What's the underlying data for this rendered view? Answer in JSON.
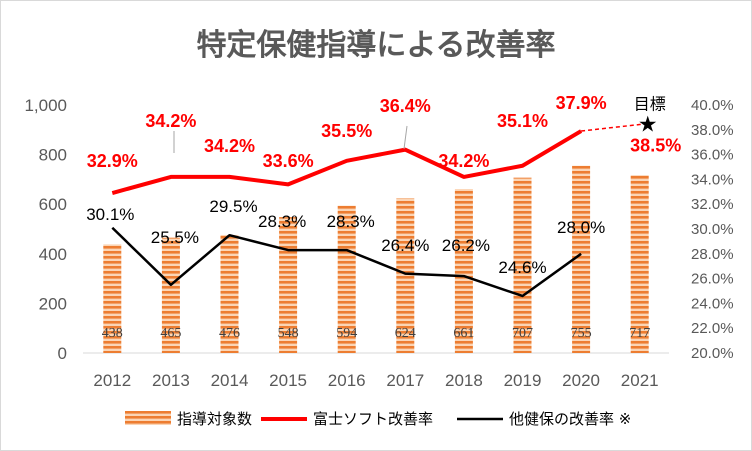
{
  "chart_data": {
    "type": "bar+line",
    "title": "特定保健指導による改善率",
    "categories": [
      "2012",
      "2013",
      "2014",
      "2015",
      "2016",
      "2017",
      "2018",
      "2019",
      "2020",
      "2021"
    ],
    "left_axis": {
      "ylim": [
        0,
        1000
      ],
      "ticks": [
        "0",
        "200",
        "400",
        "600",
        "800",
        "1,000"
      ]
    },
    "right_axis": {
      "ylim": [
        20.0,
        40.0
      ],
      "ticks": [
        "20.0%",
        "22.0%",
        "24.0%",
        "26.0%",
        "28.0%",
        "30.0%",
        "32.0%",
        "34.0%",
        "36.0%",
        "38.0%",
        "40.0%"
      ]
    },
    "series": [
      {
        "name": "指導対象数",
        "type": "bar",
        "axis": "left",
        "color": "#ed7d31",
        "values": [
          438,
          465,
          476,
          548,
          594,
          624,
          661,
          707,
          755,
          717
        ]
      },
      {
        "name": "富士ソフト改善率",
        "type": "line",
        "axis": "right",
        "color": "#ff0000",
        "values": [
          32.9,
          34.2,
          34.2,
          33.6,
          35.5,
          36.4,
          34.2,
          35.1,
          37.9,
          null
        ],
        "labels": [
          "32.9%",
          "34.2%",
          "34.2%",
          "33.6%",
          "35.5%",
          "36.4%",
          "34.2%",
          "35.1%",
          "37.9%",
          ""
        ]
      },
      {
        "name": "他健保の改善率 ※",
        "type": "line",
        "axis": "right",
        "color": "#000000",
        "values": [
          30.1,
          25.5,
          29.5,
          28.3,
          28.3,
          26.4,
          26.2,
          24.6,
          28.0,
          null
        ],
        "labels": [
          "30.1%",
          "25.5%",
          "29.5%",
          "28.3%",
          "28.3%",
          "26.4%",
          "26.2%",
          "24.6%",
          "28.0%",
          ""
        ]
      }
    ],
    "target": {
      "label": "目標",
      "value": 38.5,
      "value_label": "38.5%",
      "category": "2021"
    },
    "legend": {
      "position": "bottom"
    },
    "grid": false
  }
}
